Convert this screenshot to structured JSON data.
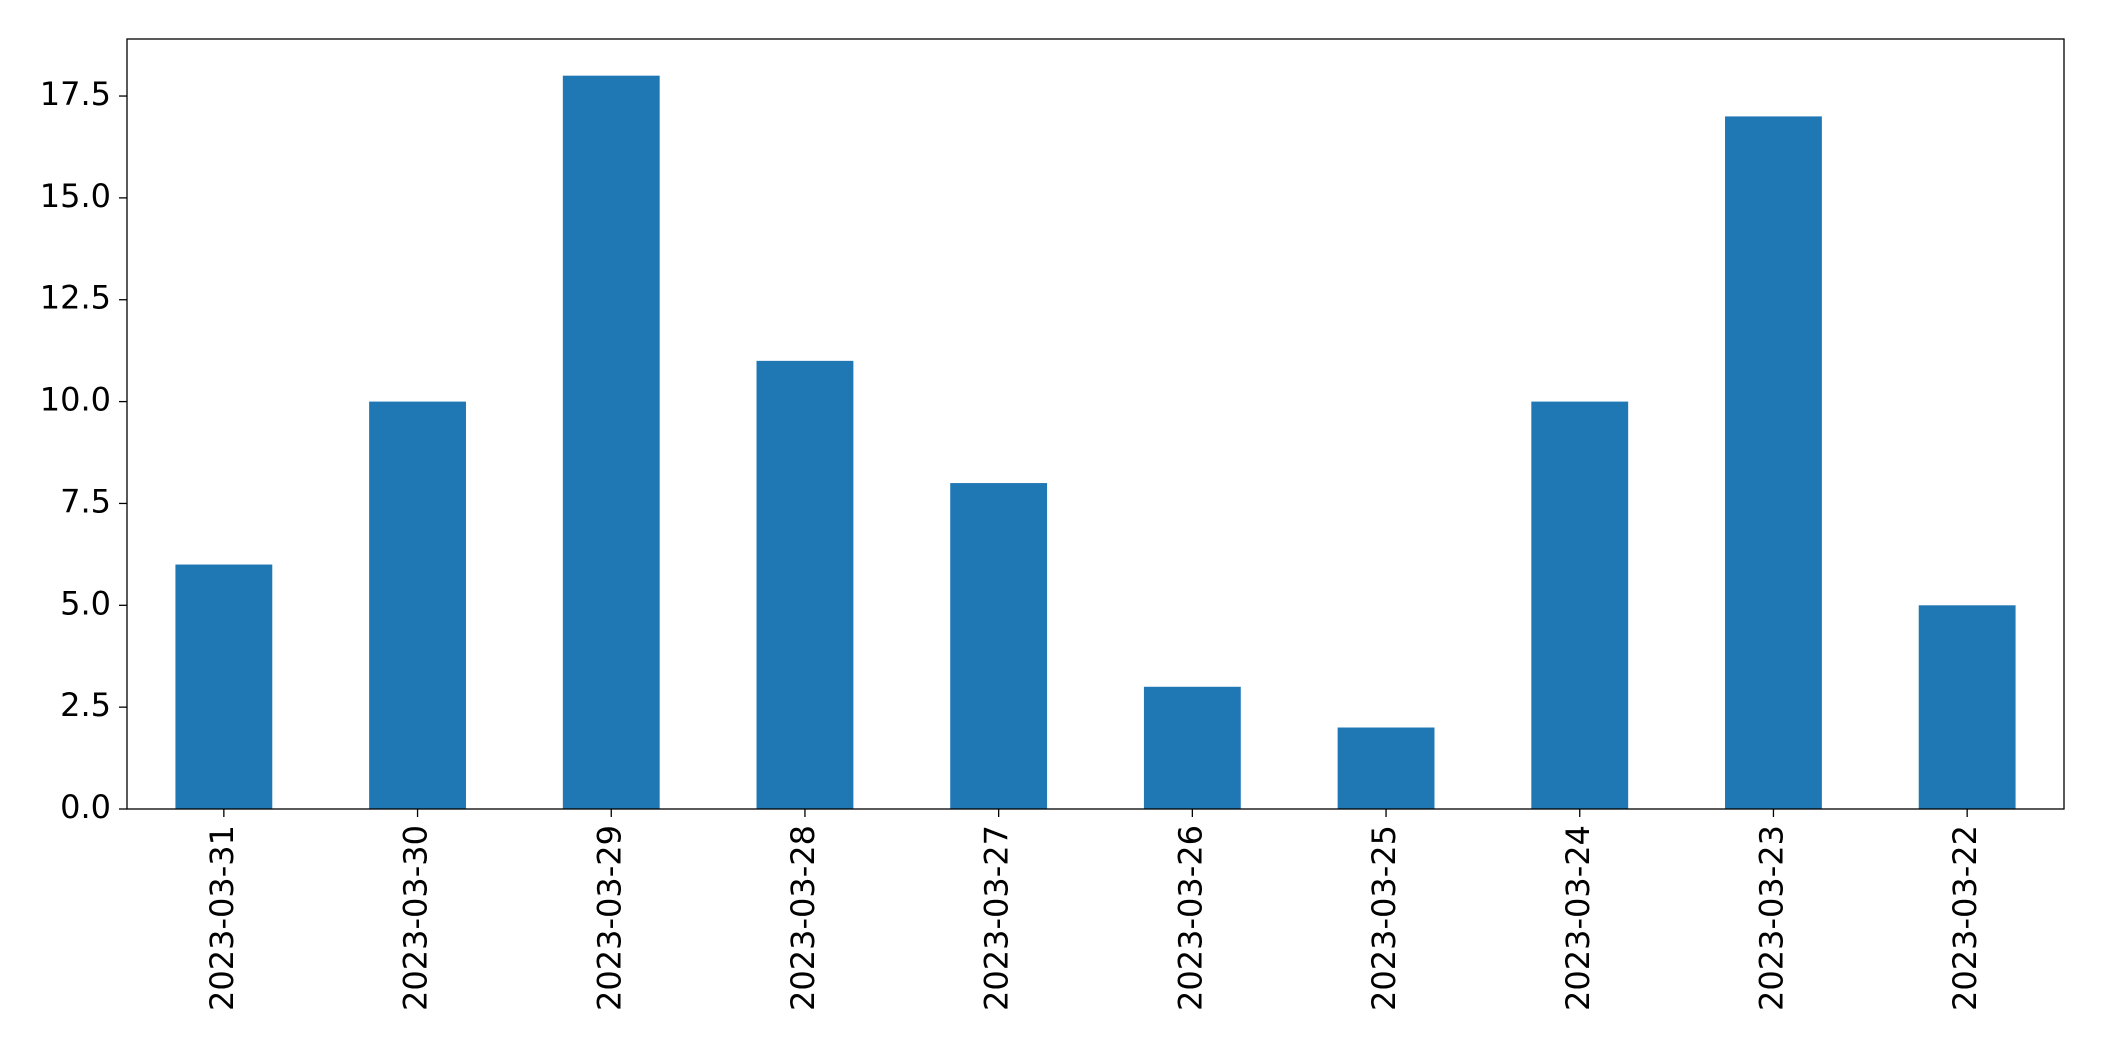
{
  "chart_data": {
    "type": "bar",
    "categories": [
      "2023-03-31",
      "2023-03-30",
      "2023-03-29",
      "2023-03-28",
      "2023-03-27",
      "2023-03-26",
      "2023-03-25",
      "2023-03-24",
      "2023-03-23",
      "2023-03-22"
    ],
    "values": [
      6,
      10,
      18,
      11,
      8,
      3,
      2,
      10,
      17,
      5
    ],
    "color": "#1f77b4",
    "ylim": [
      0,
      18.9
    ],
    "yticks": [
      {
        "value": 0,
        "label": "0.0"
      },
      2.5,
      {
        "value": 5,
        "label": "5.0"
      },
      7.5,
      {
        "value": 10,
        "label": "10.0"
      },
      12.5,
      {
        "value": 15,
        "label": "15.0"
      },
      17.5
    ],
    "grid": false
  }
}
